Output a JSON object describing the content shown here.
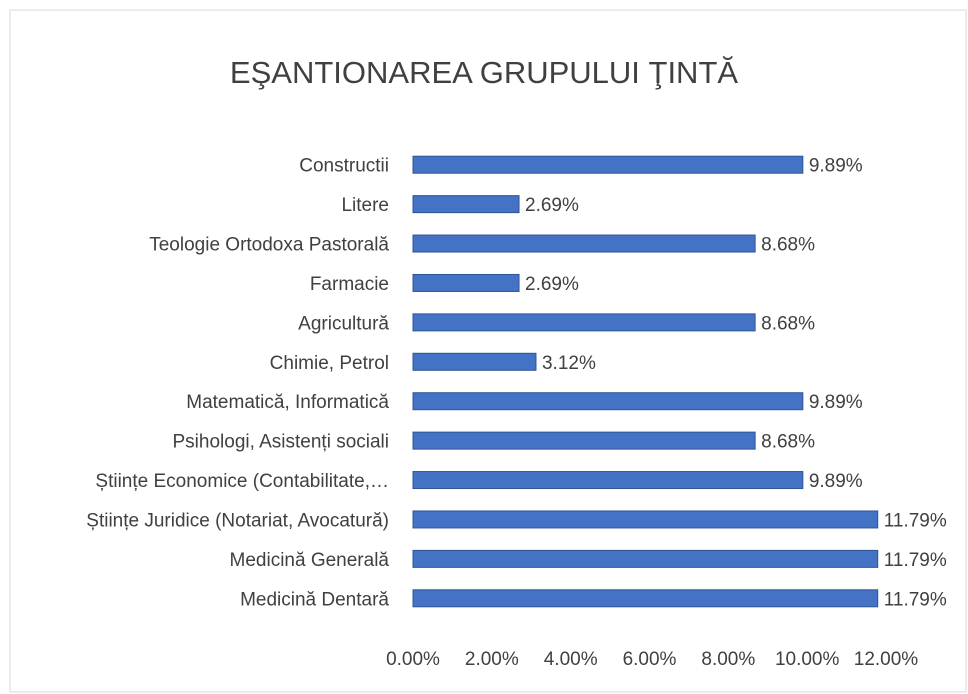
{
  "chart_data": {
    "type": "hbar",
    "title": "EŞANTIONAREA GRUPULUI ŢINTĂ",
    "categories": [
      "Constructii",
      "Litere",
      "Teologie Ortodoxa Pastorală",
      "Farmacie",
      "Agricultură",
      "Chimie, Petrol",
      "Matematică, Informatică",
      "Psihologi, Asistenți sociali",
      "Științe Economice (Contabilitate,…",
      "Științe Juridice (Notariat, Avocatură)",
      "Medicină Generală",
      "Medicină Dentară"
    ],
    "values": [
      9.89,
      2.69,
      8.68,
      2.69,
      8.68,
      3.12,
      9.89,
      8.68,
      9.89,
      11.79,
      11.79,
      11.79
    ],
    "value_labels": [
      "9.89%",
      "2.69%",
      "8.68%",
      "2.69%",
      "8.68%",
      "3.12%",
      "9.89%",
      "8.68%",
      "9.89%",
      "11.79%",
      "11.79%",
      "11.79%"
    ],
    "color": "#4472c4",
    "xlim": [
      0,
      12
    ],
    "xticks": [
      {
        "value": 0,
        "label": "0.00%"
      },
      {
        "value": 2,
        "label": "2.00%"
      },
      {
        "value": 4,
        "label": "4.00%"
      },
      {
        "value": 6,
        "label": "6.00%"
      },
      {
        "value": 8,
        "label": "8.00%"
      },
      {
        "value": 10,
        "label": "10.00%"
      },
      {
        "value": 12,
        "label": "12.00%"
      }
    ],
    "grid": false
  }
}
